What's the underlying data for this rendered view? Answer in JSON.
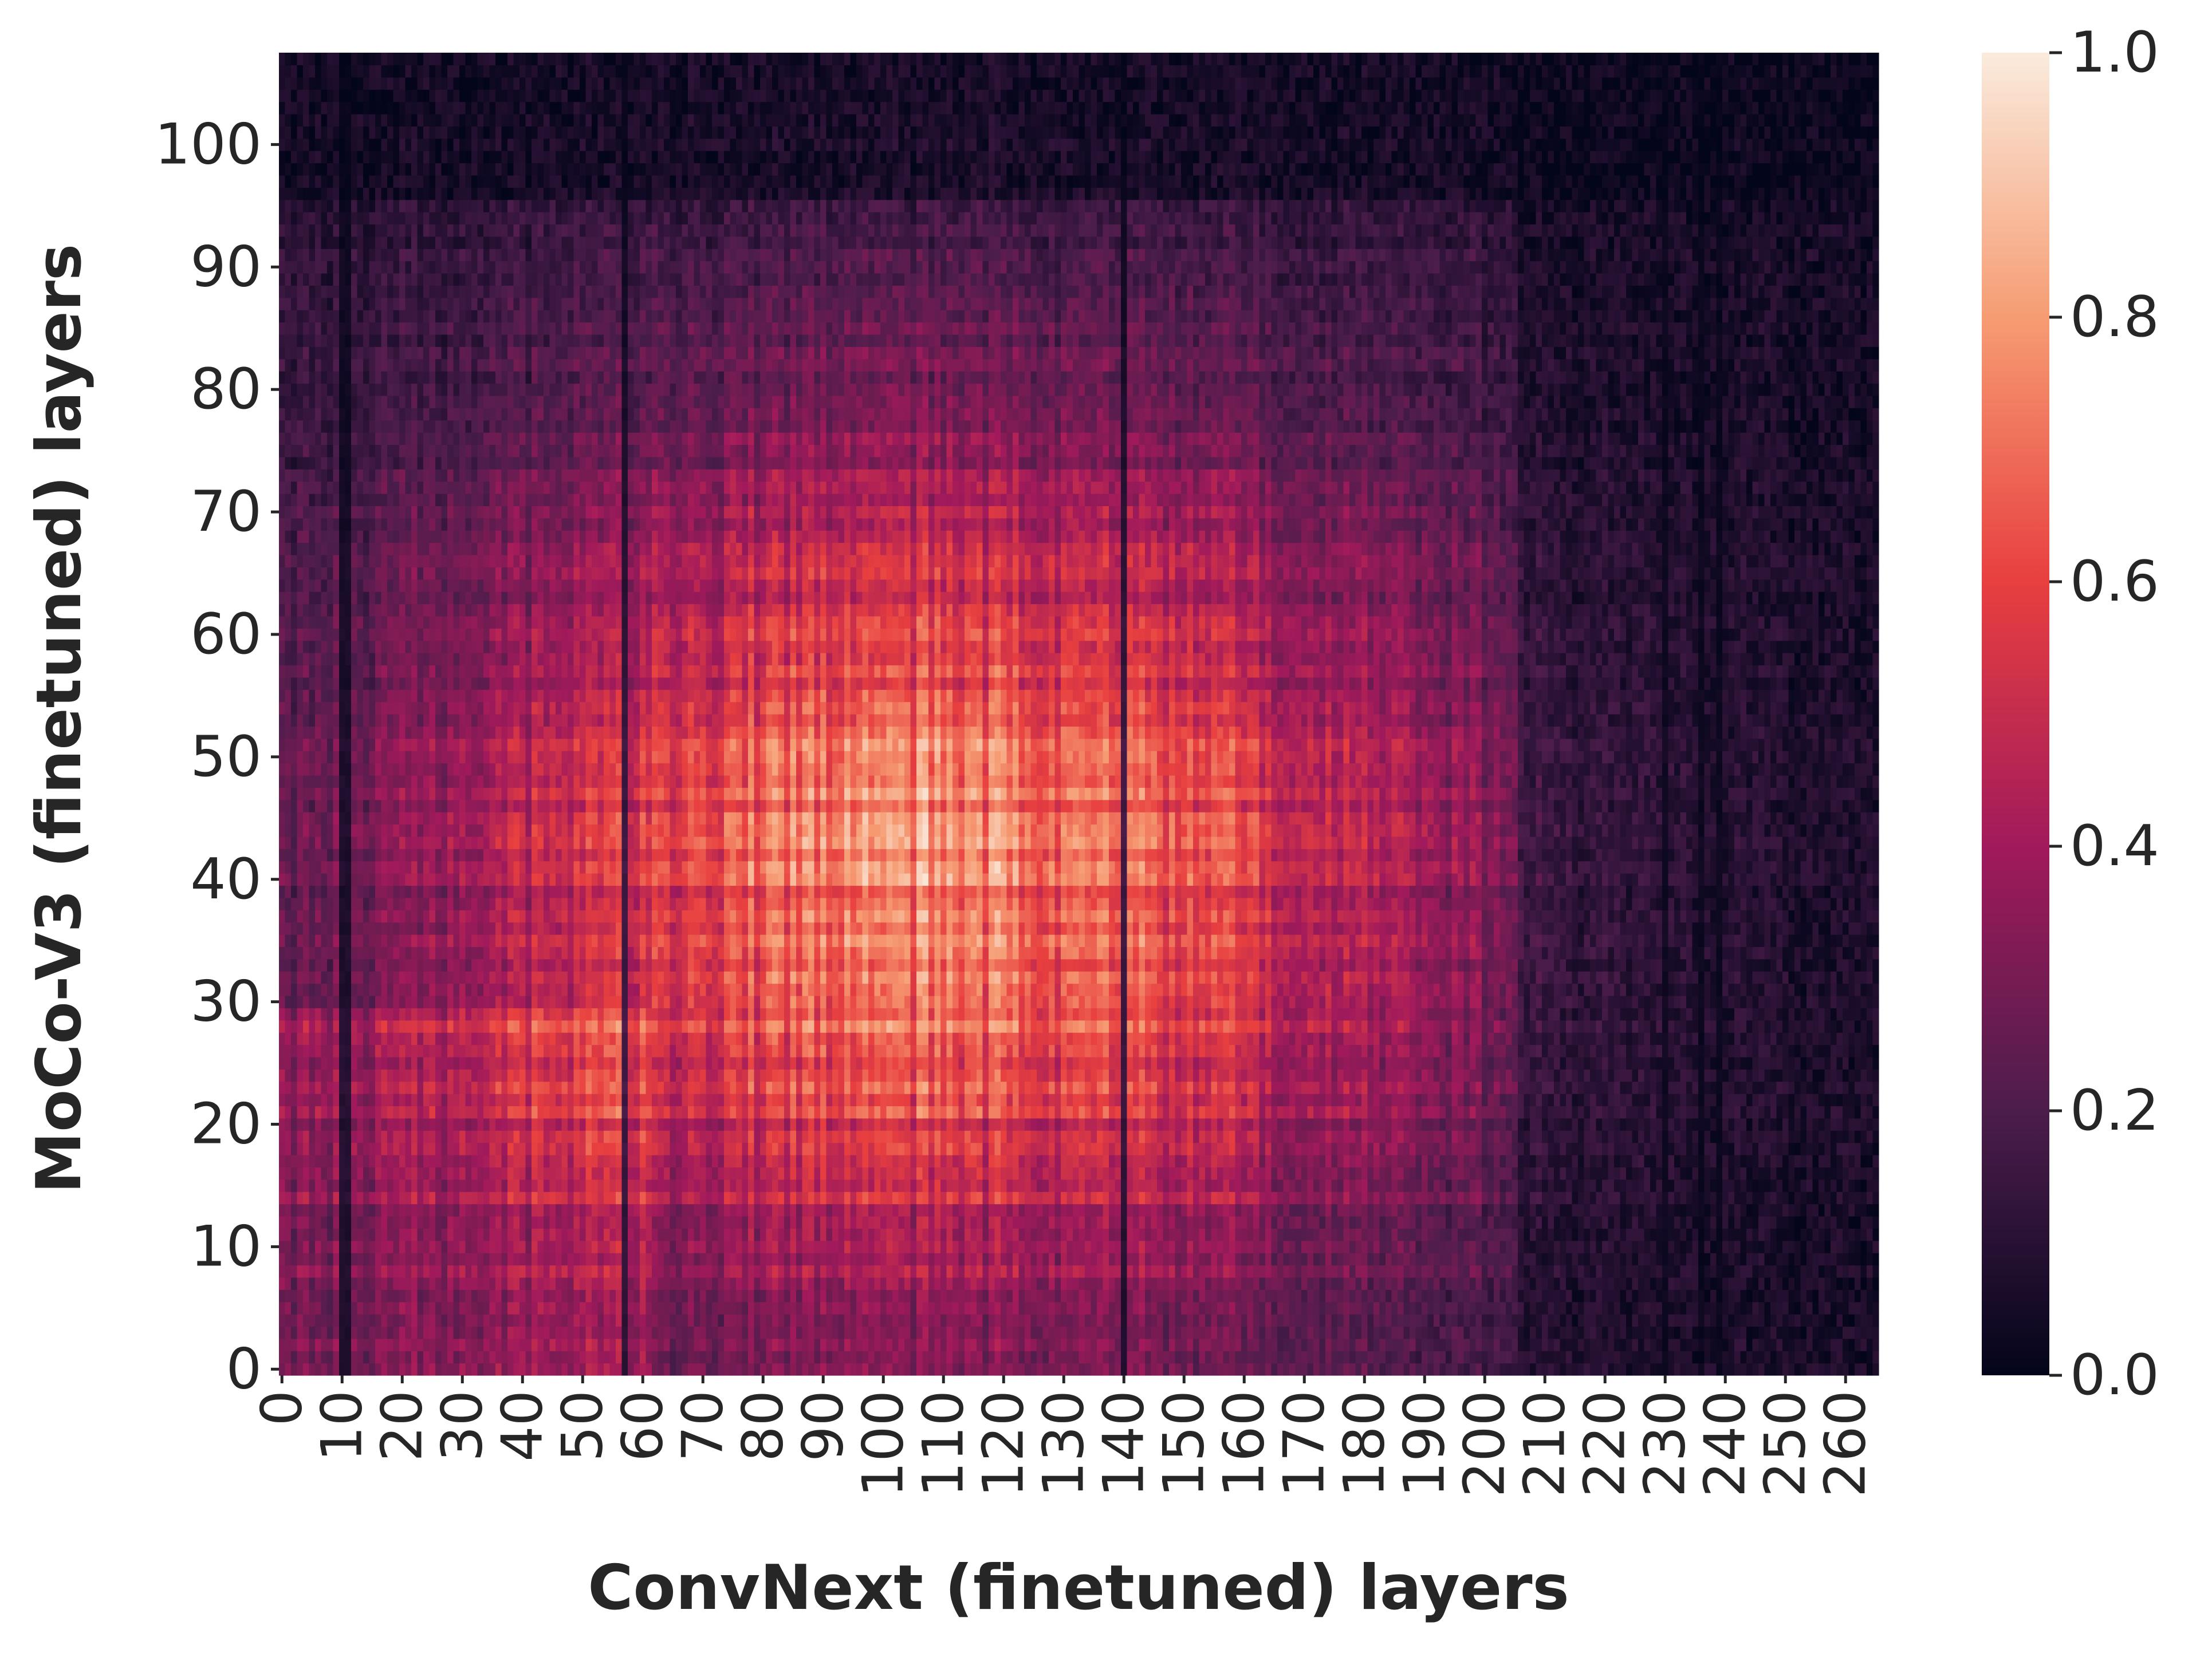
{
  "chart_data": {
    "type": "heatmap",
    "xlabel": "ConvNext (finetuned) layers",
    "ylabel": "MoCo-V3 (finetuned) layers",
    "x_range": [
      0,
      266
    ],
    "y_range": [
      0,
      108
    ],
    "x_ticks": [
      "0",
      "10",
      "20",
      "30",
      "40",
      "50",
      "60",
      "70",
      "80",
      "90",
      "100",
      "110",
      "120",
      "130",
      "140",
      "150",
      "160",
      "170",
      "180",
      "190",
      "200",
      "210",
      "220",
      "230",
      "240",
      "250",
      "260"
    ],
    "y_ticks": [
      "0",
      "10",
      "20",
      "30",
      "40",
      "50",
      "60",
      "70",
      "80",
      "90",
      "100"
    ],
    "colorbar": {
      "min": 0.0,
      "max": 1.0,
      "ticks": [
        "0.0",
        "0.2",
        "0.4",
        "0.6",
        "0.8",
        "1.0"
      ],
      "colormap": "rocket",
      "colors": [
        "#03051a",
        "#4c1d4b",
        "#a11a5b",
        "#e83f3f",
        "#f69c73",
        "#faebdd"
      ]
    },
    "pattern": {
      "description_free": true,
      "dark_columns": [
        10,
        11,
        57,
        140,
        230,
        236,
        239
      ],
      "bright_region_x": [
        2,
        200
      ],
      "bright_region_y": [
        0,
        82
      ],
      "peak_value": 0.98,
      "background_value": 0.12
    }
  }
}
